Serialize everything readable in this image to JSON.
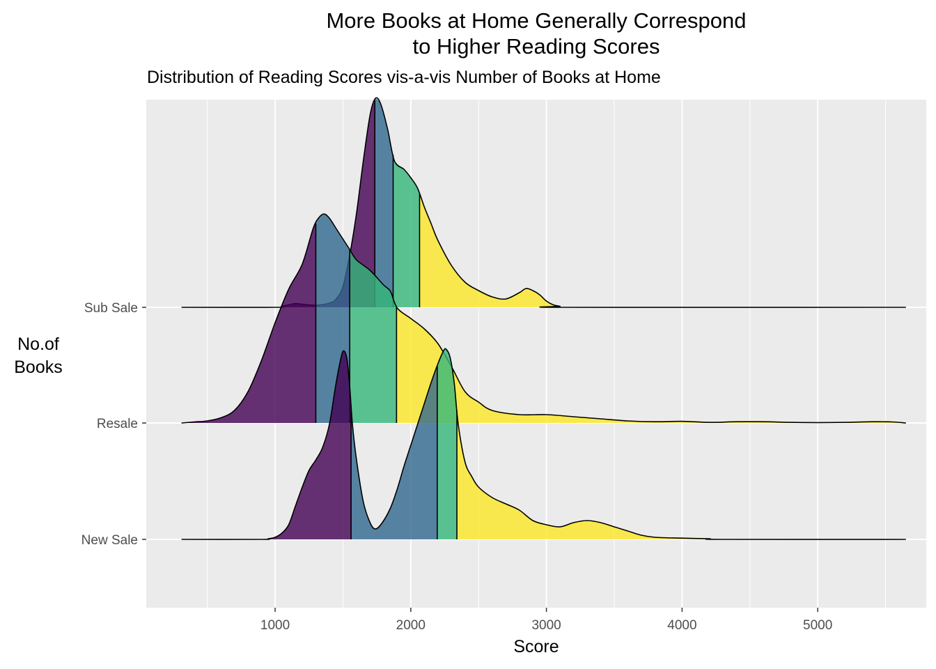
{
  "chart_data": {
    "type": "ridgeline",
    "title": "More Books at Home Generally Correspond to Higher Reading Scores",
    "title_lines": [
      "More Books at Home Generally Correspond",
      "to Higher Reading Scores"
    ],
    "subtitle": "Distribution of Reading Scores vis-a-vis Number of Books at Home",
    "xlabel": "Score",
    "ylabel_lines": [
      "No.of",
      "Books"
    ],
    "xlim": [
      50,
      5800
    ],
    "x_ticks": [
      1000,
      2000,
      3000,
      4000,
      5000
    ],
    "x_tick_labels": [
      "1000",
      "2000",
      "3000",
      "4000",
      "5000"
    ],
    "grid": true,
    "quartile_colors": [
      "#440154",
      "#31688E",
      "#35B779",
      "#FDE725"
    ],
    "categories": [
      "New Sale",
      "Resale",
      "Sub Sale"
    ],
    "series": [
      {
        "name": "New Sale",
        "range": [
          310,
          5650
        ],
        "quartiles": [
          1560,
          2195,
          2340
        ],
        "density": [
          [
            310,
            0
          ],
          [
            900,
            0
          ],
          [
            950,
            0.003
          ],
          [
            1000,
            0.01
          ],
          [
            1050,
            0.03
          ],
          [
            1100,
            0.07
          ],
          [
            1150,
            0.16
          ],
          [
            1200,
            0.25
          ],
          [
            1250,
            0.33
          ],
          [
            1300,
            0.38
          ],
          [
            1350,
            0.44
          ],
          [
            1400,
            0.55
          ],
          [
            1450,
            0.75
          ],
          [
            1490,
            0.88
          ],
          [
            1510,
            0.9
          ],
          [
            1530,
            0.86
          ],
          [
            1550,
            0.73
          ],
          [
            1570,
            0.55
          ],
          [
            1600,
            0.38
          ],
          [
            1650,
            0.18
          ],
          [
            1700,
            0.08
          ],
          [
            1740,
            0.05
          ],
          [
            1790,
            0.08
          ],
          [
            1850,
            0.15
          ],
          [
            1900,
            0.24
          ],
          [
            1950,
            0.35
          ],
          [
            2000,
            0.45
          ],
          [
            2050,
            0.55
          ],
          [
            2100,
            0.65
          ],
          [
            2150,
            0.75
          ],
          [
            2200,
            0.84
          ],
          [
            2240,
            0.9
          ],
          [
            2260,
            0.91
          ],
          [
            2290,
            0.87
          ],
          [
            2320,
            0.75
          ],
          [
            2350,
            0.55
          ],
          [
            2400,
            0.37
          ],
          [
            2450,
            0.3
          ],
          [
            2500,
            0.25
          ],
          [
            2600,
            0.2
          ],
          [
            2700,
            0.17
          ],
          [
            2800,
            0.14
          ],
          [
            2900,
            0.09
          ],
          [
            3000,
            0.07
          ],
          [
            3100,
            0.06
          ],
          [
            3200,
            0.08
          ],
          [
            3300,
            0.09
          ],
          [
            3400,
            0.08
          ],
          [
            3500,
            0.06
          ],
          [
            3600,
            0.04
          ],
          [
            3700,
            0.02
          ],
          [
            3800,
            0.01
          ],
          [
            4000,
            0.006
          ],
          [
            4200,
            0.003
          ],
          [
            4300,
            0
          ],
          [
            5650,
            0
          ]
        ]
      },
      {
        "name": "Resale",
        "range": [
          310,
          5650
        ],
        "quartiles": [
          1300,
          1550,
          1895
        ],
        "density": [
          [
            310,
            0
          ],
          [
            400,
            0.005
          ],
          [
            500,
            0.01
          ],
          [
            600,
            0.025
          ],
          [
            700,
            0.06
          ],
          [
            800,
            0.15
          ],
          [
            900,
            0.3
          ],
          [
            1000,
            0.48
          ],
          [
            1100,
            0.64
          ],
          [
            1200,
            0.76
          ],
          [
            1280,
            0.93
          ],
          [
            1320,
            0.98
          ],
          [
            1360,
            1.0
          ],
          [
            1400,
            0.98
          ],
          [
            1450,
            0.93
          ],
          [
            1500,
            0.88
          ],
          [
            1550,
            0.83
          ],
          [
            1600,
            0.78
          ],
          [
            1700,
            0.73
          ],
          [
            1800,
            0.66
          ],
          [
            1850,
            0.63
          ],
          [
            1900,
            0.55
          ],
          [
            2000,
            0.5
          ],
          [
            2100,
            0.45
          ],
          [
            2200,
            0.38
          ],
          [
            2300,
            0.27
          ],
          [
            2400,
            0.15
          ],
          [
            2500,
            0.1
          ],
          [
            2600,
            0.06
          ],
          [
            2800,
            0.04
          ],
          [
            3000,
            0.04
          ],
          [
            3200,
            0.03
          ],
          [
            3400,
            0.02
          ],
          [
            3600,
            0.01
          ],
          [
            3800,
            0.006
          ],
          [
            4000,
            0.008
          ],
          [
            4200,
            0.003
          ],
          [
            4400,
            0.006
          ],
          [
            4600,
            0.006
          ],
          [
            4800,
            0.003
          ],
          [
            5000,
            0.002
          ],
          [
            5200,
            0.003
          ],
          [
            5400,
            0.006
          ],
          [
            5550,
            0.005
          ],
          [
            5650,
            0
          ]
        ]
      },
      {
        "name": "Sub Sale",
        "range": [
          310,
          5650
        ],
        "quartiles": [
          1735,
          1870,
          2065
        ],
        "density": [
          [
            310,
            0
          ],
          [
            1000,
            0
          ],
          [
            1050,
            0.005
          ],
          [
            1100,
            0.012
          ],
          [
            1150,
            0.018
          ],
          [
            1200,
            0.015
          ],
          [
            1300,
            0.01
          ],
          [
            1400,
            0.02
          ],
          [
            1450,
            0.04
          ],
          [
            1500,
            0.1
          ],
          [
            1550,
            0.25
          ],
          [
            1600,
            0.45
          ],
          [
            1650,
            0.7
          ],
          [
            1700,
            0.92
          ],
          [
            1740,
            1.0
          ],
          [
            1780,
            0.97
          ],
          [
            1830,
            0.85
          ],
          [
            1880,
            0.7
          ],
          [
            1950,
            0.66
          ],
          [
            2000,
            0.62
          ],
          [
            2050,
            0.57
          ],
          [
            2100,
            0.48
          ],
          [
            2150,
            0.4
          ],
          [
            2200,
            0.32
          ],
          [
            2300,
            0.2
          ],
          [
            2400,
            0.12
          ],
          [
            2500,
            0.08
          ],
          [
            2600,
            0.05
          ],
          [
            2700,
            0.04
          ],
          [
            2800,
            0.07
          ],
          [
            2850,
            0.09
          ],
          [
            2900,
            0.08
          ],
          [
            2950,
            0.06
          ],
          [
            3000,
            0.03
          ],
          [
            3050,
            0.012
          ],
          [
            3100,
            0.005
          ],
          [
            3150,
            0
          ],
          [
            5650,
            0
          ]
        ]
      }
    ]
  }
}
